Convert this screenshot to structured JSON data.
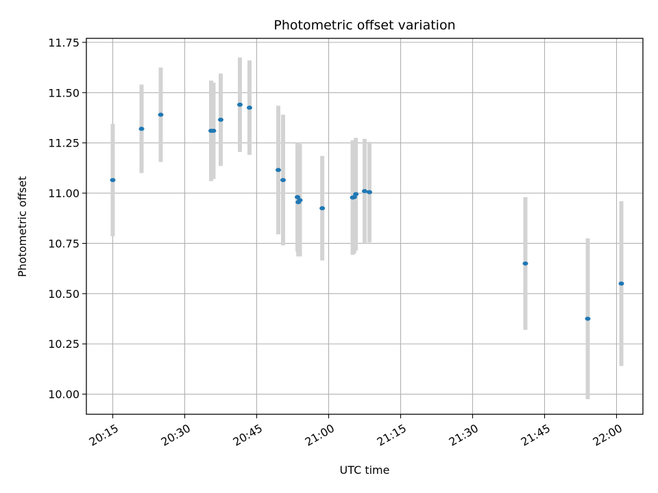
{
  "chart_data": {
    "type": "scatter",
    "title": "Photometric offset variation",
    "xlabel": "UTC time",
    "ylabel": "Photometric offset",
    "x_ticks": [
      "20:15",
      "20:30",
      "20:45",
      "21:00",
      "21:15",
      "21:30",
      "21:45",
      "22:00"
    ],
    "y_ticks": [
      "10.00",
      "10.25",
      "10.50",
      "10.75",
      "11.00",
      "11.25",
      "11.50",
      "11.75"
    ],
    "xlim": [
      "20:09:30",
      "22:05:30"
    ],
    "ylim": [
      9.9,
      11.77
    ],
    "grid": true,
    "marker_color": "#1f77b4",
    "errorbar_color": "#d3d3d3",
    "points": [
      {
        "t": "20:15:00",
        "y": 11.065,
        "yerr": 0.28
      },
      {
        "t": "20:21:00",
        "y": 11.32,
        "yerr": 0.22
      },
      {
        "t": "20:25:00",
        "y": 11.39,
        "yerr": 0.235
      },
      {
        "t": "20:35:30",
        "y": 11.31,
        "yerr": 0.25
      },
      {
        "t": "20:36:00",
        "y": 11.31,
        "yerr": 0.24
      },
      {
        "t": "20:37:30",
        "y": 11.365,
        "yerr": 0.23
      },
      {
        "t": "20:41:30",
        "y": 11.44,
        "yerr": 0.235
      },
      {
        "t": "20:43:30",
        "y": 11.425,
        "yerr": 0.235
      },
      {
        "t": "20:49:30",
        "y": 11.115,
        "yerr": 0.32
      },
      {
        "t": "20:50:30",
        "y": 11.065,
        "yerr": 0.325
      },
      {
        "t": "20:53:30",
        "y": 10.98,
        "yerr": 0.27
      },
      {
        "t": "20:53:40",
        "y": 10.955,
        "yerr": 0.27
      },
      {
        "t": "20:54:00",
        "y": 10.965,
        "yerr": 0.28
      },
      {
        "t": "20:58:40",
        "y": 10.925,
        "yerr": 0.26
      },
      {
        "t": "21:05:00",
        "y": 10.978,
        "yerr": 0.285
      },
      {
        "t": "21:05:20",
        "y": 10.98,
        "yerr": 0.28
      },
      {
        "t": "21:05:40",
        "y": 10.995,
        "yerr": 0.28
      },
      {
        "t": "21:07:30",
        "y": 11.01,
        "yerr": 0.26
      },
      {
        "t": "21:08:30",
        "y": 11.005,
        "yerr": 0.25
      },
      {
        "t": "21:41:00",
        "y": 10.65,
        "yerr": 0.33
      },
      {
        "t": "21:54:00",
        "y": 10.375,
        "yerr": 0.4
      },
      {
        "t": "22:01:00",
        "y": 10.55,
        "yerr": 0.41
      }
    ]
  }
}
